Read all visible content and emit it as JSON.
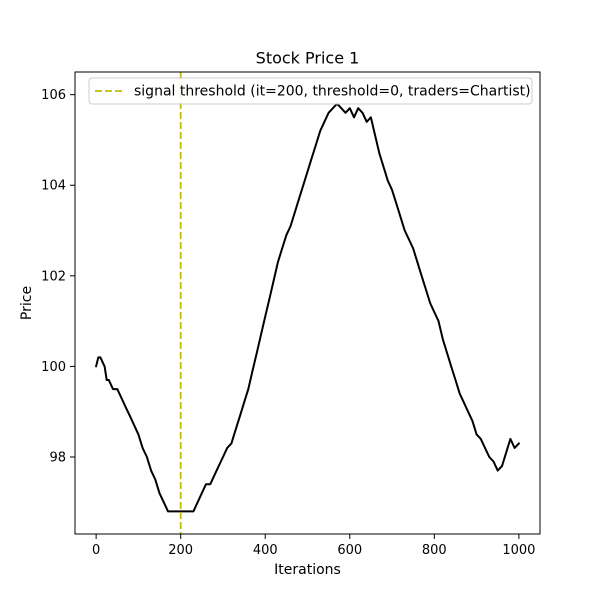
{
  "chart_data": {
    "type": "line",
    "title": "Stock Price 1",
    "xlabel": "Iterations",
    "ylabel": "Price",
    "xlim": [
      -50,
      1050
    ],
    "ylim": [
      96.3,
      106.5
    ],
    "xticks": [
      0,
      200,
      400,
      600,
      800,
      1000
    ],
    "yticks": [
      98,
      100,
      102,
      104,
      106
    ],
    "xtick_labels": [
      "0",
      "200",
      "400",
      "600",
      "800",
      "1000"
    ],
    "ytick_labels": [
      "98",
      "100",
      "102",
      "104",
      "106"
    ],
    "grid": false,
    "legend_position": "top-right",
    "colors": {
      "price_line": "#000000",
      "threshold_line": "#bfbf00"
    },
    "series": [
      {
        "style": "solid",
        "x": [
          0,
          5,
          10,
          20,
          25,
          30,
          40,
          50,
          60,
          70,
          80,
          90,
          100,
          110,
          120,
          130,
          140,
          150,
          160,
          170,
          180,
          190,
          200,
          210,
          220,
          230,
          240,
          250,
          260,
          270,
          280,
          290,
          300,
          310,
          320,
          330,
          340,
          350,
          360,
          370,
          380,
          390,
          400,
          410,
          420,
          430,
          440,
          450,
          460,
          470,
          480,
          490,
          500,
          510,
          520,
          530,
          540,
          550,
          560,
          570,
          580,
          590,
          600,
          610,
          620,
          630,
          640,
          650,
          660,
          670,
          680,
          690,
          700,
          710,
          720,
          730,
          740,
          750,
          760,
          770,
          780,
          790,
          800,
          810,
          820,
          830,
          840,
          850,
          860,
          870,
          880,
          890,
          900,
          910,
          920,
          930,
          940,
          950,
          960,
          970,
          980,
          990,
          1000
        ],
        "y": [
          100.0,
          100.2,
          100.2,
          100.0,
          99.7,
          99.7,
          99.5,
          99.5,
          99.3,
          99.1,
          98.9,
          98.7,
          98.5,
          98.2,
          98.0,
          97.7,
          97.5,
          97.2,
          97.0,
          96.8,
          96.8,
          96.8,
          96.8,
          96.8,
          96.8,
          96.8,
          97.0,
          97.2,
          97.4,
          97.4,
          97.6,
          97.8,
          98.0,
          98.2,
          98.3,
          98.6,
          98.9,
          99.2,
          99.5,
          99.9,
          100.3,
          100.7,
          101.1,
          101.5,
          101.9,
          102.3,
          102.6,
          102.9,
          103.1,
          103.4,
          103.7,
          104.0,
          104.3,
          104.6,
          104.9,
          105.2,
          105.4,
          105.6,
          105.7,
          105.8,
          105.7,
          105.6,
          105.7,
          105.5,
          105.7,
          105.6,
          105.4,
          105.5,
          105.1,
          104.7,
          104.4,
          104.1,
          103.9,
          103.6,
          103.3,
          103.0,
          102.8,
          102.6,
          102.3,
          102.0,
          101.7,
          101.4,
          101.2,
          101.0,
          100.6,
          100.3,
          100.0,
          99.7,
          99.4,
          99.2,
          99.0,
          98.8,
          98.5,
          98.4,
          98.2,
          98.0,
          97.9,
          97.7,
          97.8,
          98.1,
          98.4,
          98.2,
          98.3
        ]
      }
    ],
    "threshold": {
      "x": 200,
      "style": "dashed",
      "legend_label": "signal threshold (it=200, threshold=0, traders=Chartist)"
    }
  }
}
